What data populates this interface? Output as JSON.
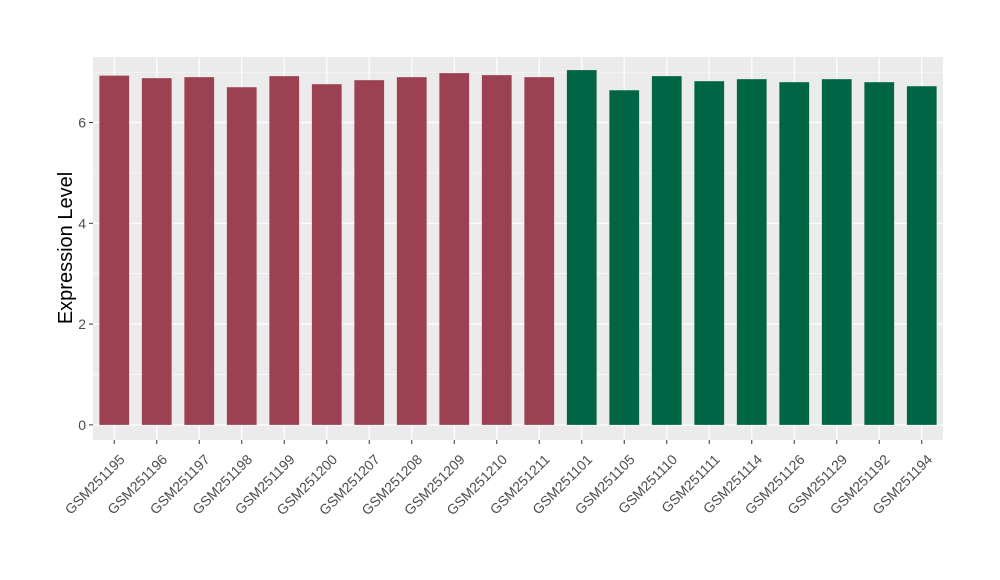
{
  "chart_data": {
    "type": "bar",
    "title": "",
    "xlabel": "",
    "ylabel": "Expression Level",
    "ylim": [
      -0.3,
      7.3
    ],
    "yticks": [
      0,
      2,
      4,
      6
    ],
    "grid": true,
    "legend": "none",
    "categories": [
      "GSM251195",
      "GSM251196",
      "GSM251197",
      "GSM251198",
      "GSM251199",
      "GSM251200",
      "GSM251207",
      "GSM251208",
      "GSM251209",
      "GSM251210",
      "GSM251211",
      "GSM251101",
      "GSM251105",
      "GSM251110",
      "GSM251111",
      "GSM251114",
      "GSM251126",
      "GSM251129",
      "GSM251192",
      "GSM251194"
    ],
    "values": [
      6.93,
      6.88,
      6.9,
      6.7,
      6.92,
      6.76,
      6.84,
      6.9,
      6.98,
      6.94,
      6.9,
      7.04,
      6.64,
      6.92,
      6.82,
      6.86,
      6.8,
      6.86,
      6.8,
      6.72
    ],
    "groups": [
      0,
      0,
      0,
      0,
      0,
      0,
      0,
      0,
      0,
      0,
      0,
      1,
      1,
      1,
      1,
      1,
      1,
      1,
      1,
      1
    ],
    "colors": [
      "#9b4151",
      "#006544"
    ],
    "panel_background": "#ebebeb",
    "grid_color": "#ffffff"
  }
}
